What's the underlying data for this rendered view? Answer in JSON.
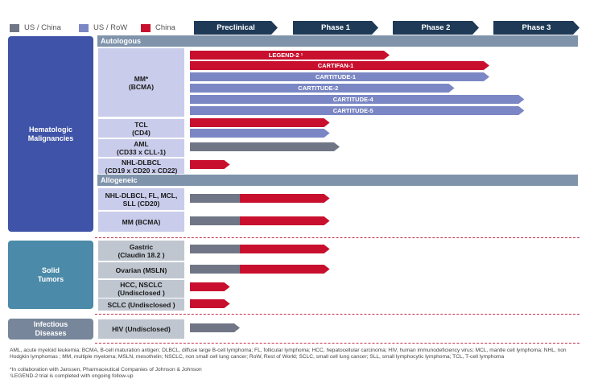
{
  "colors": {
    "us_china": "#707685",
    "us_row": "#7b87c4",
    "china": "#c8102e",
    "hemat": "#3f53a8",
    "solid": "#4b8aa8",
    "infectious": "#77869a"
  },
  "legend": [
    {
      "label": "US / China",
      "color": "#707685"
    },
    {
      "label": "US / RoW",
      "color": "#7b87c4"
    },
    {
      "label": "China",
      "color": "#c8102e"
    }
  ],
  "phases": [
    "Preclinical",
    "Phase 1",
    "Phase 2",
    "Phase 3"
  ],
  "groups": {
    "hematologic": "Hematologic\nMalignancies",
    "solid": "Solid\nTumors",
    "infectious": "Infectious\nDiseases"
  },
  "subheaders": {
    "autologous": "Autologous",
    "allogeneic": "Allogeneic"
  },
  "indications": [
    "MM*\n(BCMA)",
    "TCL\n(CD4)",
    "AML\n(CD33 x CLL-1)",
    "NHL-DLBCL\n(CD19 x CD20 x CD22)",
    "NHL-DLBCL, FL,   MCL,\nSLL (CD20)",
    "MM (BCMA)",
    "Gastric\n(Claudin 18.2 )",
    "Ovarian (MSLN)",
    "HCC, NSCLC\n(Undisclosed )",
    "SCLC (Undisclosed )",
    "HIV (Undisclosed)"
  ],
  "chart_data": {
    "type": "bar",
    "title": "",
    "phase_scale": [
      "Preclinical",
      "Phase 1",
      "Phase 2",
      "Phase 3"
    ],
    "series": [
      {
        "name": "US / China"
      },
      {
        "name": "US / RoW"
      },
      {
        "name": "China"
      }
    ],
    "programs": [
      {
        "indication": "MM* (BCMA)",
        "label": "LEGEND-2 ¹",
        "segments": [
          {
            "region": "China",
            "start": 1,
            "end": 2.0
          }
        ]
      },
      {
        "indication": "MM* (BCMA)",
        "label": "CARTIFAN-1",
        "segments": [
          {
            "region": "China",
            "start": 1,
            "end": 3.0
          }
        ]
      },
      {
        "indication": "MM* (BCMA)",
        "label": "CARTITUDE-1",
        "segments": [
          {
            "region": "US / RoW",
            "start": 1,
            "end": 3.0
          }
        ]
      },
      {
        "indication": "MM* (BCMA)",
        "label": "CARTITUDE-2",
        "segments": [
          {
            "region": "US / RoW",
            "start": 1,
            "end": 2.65
          }
        ]
      },
      {
        "indication": "MM* (BCMA)",
        "label": "CARTITUDE-4",
        "segments": [
          {
            "region": "US / RoW",
            "start": 1,
            "end": 3.35
          }
        ]
      },
      {
        "indication": "MM* (BCMA)",
        "label": "CARTITUDE-5",
        "segments": [
          {
            "region": "US / RoW",
            "start": 1,
            "end": 3.35
          }
        ]
      },
      {
        "indication": "TCL (CD4)",
        "label": "",
        "segments": [
          {
            "region": "China",
            "start": 1,
            "end": 1.4
          }
        ]
      },
      {
        "indication": "TCL (CD4)",
        "label": "",
        "segments": [
          {
            "region": "US / RoW",
            "start": 1,
            "end": 1.4
          }
        ]
      },
      {
        "indication": "AML (CD33 x CLL-1)",
        "label": "",
        "segments": [
          {
            "region": "US / China",
            "start": 1,
            "end": 1.5
          },
          {
            "region": "China",
            "start": 1.5,
            "end": 1.4
          }
        ]
      },
      {
        "indication": "NHL-DLBCL (CD19 x CD20 x CD22)",
        "label": "",
        "segments": [
          {
            "region": "China",
            "start": 1,
            "end": 0.4
          }
        ]
      },
      {
        "indication": "NHL-DLBCL, FL, MCL, SLL (CD20)",
        "label": "",
        "segments": [
          {
            "region": "US / China",
            "start": 1,
            "end": 0.5
          },
          {
            "region": "China",
            "start": 0.5,
            "end": 1.4
          }
        ]
      },
      {
        "indication": "MM (BCMA)",
        "label": "",
        "segments": [
          {
            "region": "US / China",
            "start": 1,
            "end": 0.5
          },
          {
            "region": "China",
            "start": 0.5,
            "end": 1.4
          }
        ]
      },
      {
        "indication": "Gastric (Claudin 18.2)",
        "label": "",
        "segments": [
          {
            "region": "US / China",
            "start": 1,
            "end": 0.5
          },
          {
            "region": "China",
            "start": 0.5,
            "end": 1.4
          }
        ]
      },
      {
        "indication": "Ovarian (MSLN)",
        "label": "",
        "segments": [
          {
            "region": "US / China",
            "start": 1,
            "end": 0.5
          },
          {
            "region": "China",
            "start": 0.5,
            "end": 1.4
          }
        ]
      },
      {
        "indication": "HCC, NSCLC (Undisclosed)",
        "label": "",
        "segments": [
          {
            "region": "China",
            "start": 1,
            "end": 0.4
          }
        ]
      },
      {
        "indication": "SCLC (Undisclosed)",
        "label": "",
        "segments": [
          {
            "region": "China",
            "start": 1,
            "end": 0.4
          }
        ]
      },
      {
        "indication": "HIV (Undisclosed)",
        "label": "",
        "segments": [
          {
            "region": "US / China",
            "start": 1,
            "end": 0.5
          }
        ]
      }
    ]
  },
  "footnotes": [
    "AML,  acute myeloid leukemia; BCMA,  B-cell maturation antigen; DLBCL,  diffuse large B-cell lymphoma; FL,  follicular lymphoma; HCC,  hepatocellular carcinoma; HIV, human immunodeficiency virus; MCL,  mantle cell lymphoma; NHL,  non",
    "Hodgkin lymphomas ; MM,  multiple  myeloma;  MSLN, mesothelin; NSCLC, non small cell lung cancer;   RoW, Rest of World;  SCLC, small cell lung cancer;  SLL, small lymphocytic lymphoma;  TCL, T-cell lymphoma",
    "*In collaboration with Janssen, Pharmaceutical Companies of Johnson & Johnson",
    "¹LEGEND-2 trial is completed with ongoing follow-up"
  ]
}
